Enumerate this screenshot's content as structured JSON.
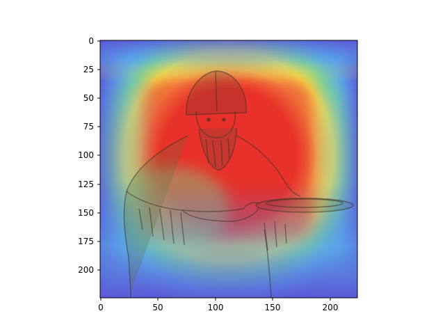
{
  "figure": {
    "background": "#ffffff",
    "image": {
      "description_name": "gradcam-heatmap-over-engraving",
      "colormap": "jet",
      "overlay_alpha": 0.5
    },
    "axes": {
      "x_ticks": [
        "0",
        "50",
        "100",
        "150",
        "200"
      ],
      "y_ticks": [
        "0",
        "25",
        "50",
        "75",
        "100",
        "125",
        "150",
        "175",
        "200"
      ],
      "x_range": [
        0,
        224
      ],
      "y_range": [
        0,
        224
      ],
      "y_inverted": true
    },
    "colors": {
      "hot": "#e8312a",
      "warm": "#f5e14a",
      "mid": "#7fd68a",
      "cool": "#5aa8e8",
      "cold": "#5b57d6",
      "ink": "#3a3020"
    }
  }
}
